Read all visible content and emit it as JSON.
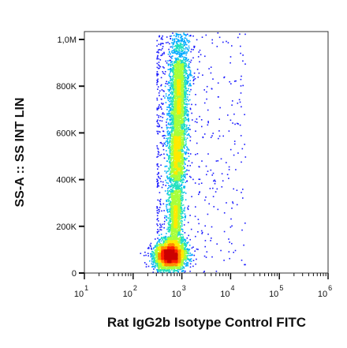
{
  "chart_data": {
    "type": "scatter",
    "subtype": "flow-cytometry density dot plot (pseudocolor)",
    "xlabel": "Rat IgG2b Isotype Control FITC",
    "ylabel": "SS-A :: SS INT LIN",
    "x_scale": "log",
    "y_scale": "linear",
    "xlim": [
      10,
      1000000
    ],
    "ylim": [
      0,
      1050000
    ],
    "x_ticks": [
      {
        "value": 10,
        "base": "10",
        "exp": "1"
      },
      {
        "value": 100,
        "base": "10",
        "exp": "2"
      },
      {
        "value": 1000,
        "base": "10",
        "exp": "3"
      },
      {
        "value": 10000,
        "base": "10",
        "exp": "4"
      },
      {
        "value": 100000,
        "base": "10",
        "exp": "5"
      },
      {
        "value": 1000000,
        "base": "10",
        "exp": "6"
      }
    ],
    "y_ticks": [
      {
        "value": 0,
        "label": "0"
      },
      {
        "value": 200000,
        "label": "200K"
      },
      {
        "value": 400000,
        "label": "400K"
      },
      {
        "value": 600000,
        "label": "600K"
      },
      {
        "value": 800000,
        "label": "800K"
      },
      {
        "value": 1000000,
        "label": "1,0M"
      }
    ],
    "grid": false,
    "legend": "none",
    "colormap": [
      "#1a1aff",
      "#00aaff",
      "#22e0c0",
      "#a8ff3a",
      "#ffea00",
      "#ff8c00",
      "#ff2000",
      "#cc0000"
    ],
    "populations": [
      {
        "name": "low-scatter cluster",
        "x_center": 550,
        "y_center": 75000,
        "x_spread_decades": 0.16,
        "y_spread": 28000,
        "weight": 0.34
      },
      {
        "name": "vertical stream",
        "x_start": 700,
        "x_end": 900,
        "y_start": 130000,
        "y_end": 1040000,
        "x_spread_decades": 0.08,
        "weight": 0.58
      },
      {
        "name": "sparse scatter",
        "x_range": [
          300,
          20000
        ],
        "y_range": [
          0,
          1040000
        ],
        "weight": 0.08
      }
    ],
    "point_count": 9000
  }
}
